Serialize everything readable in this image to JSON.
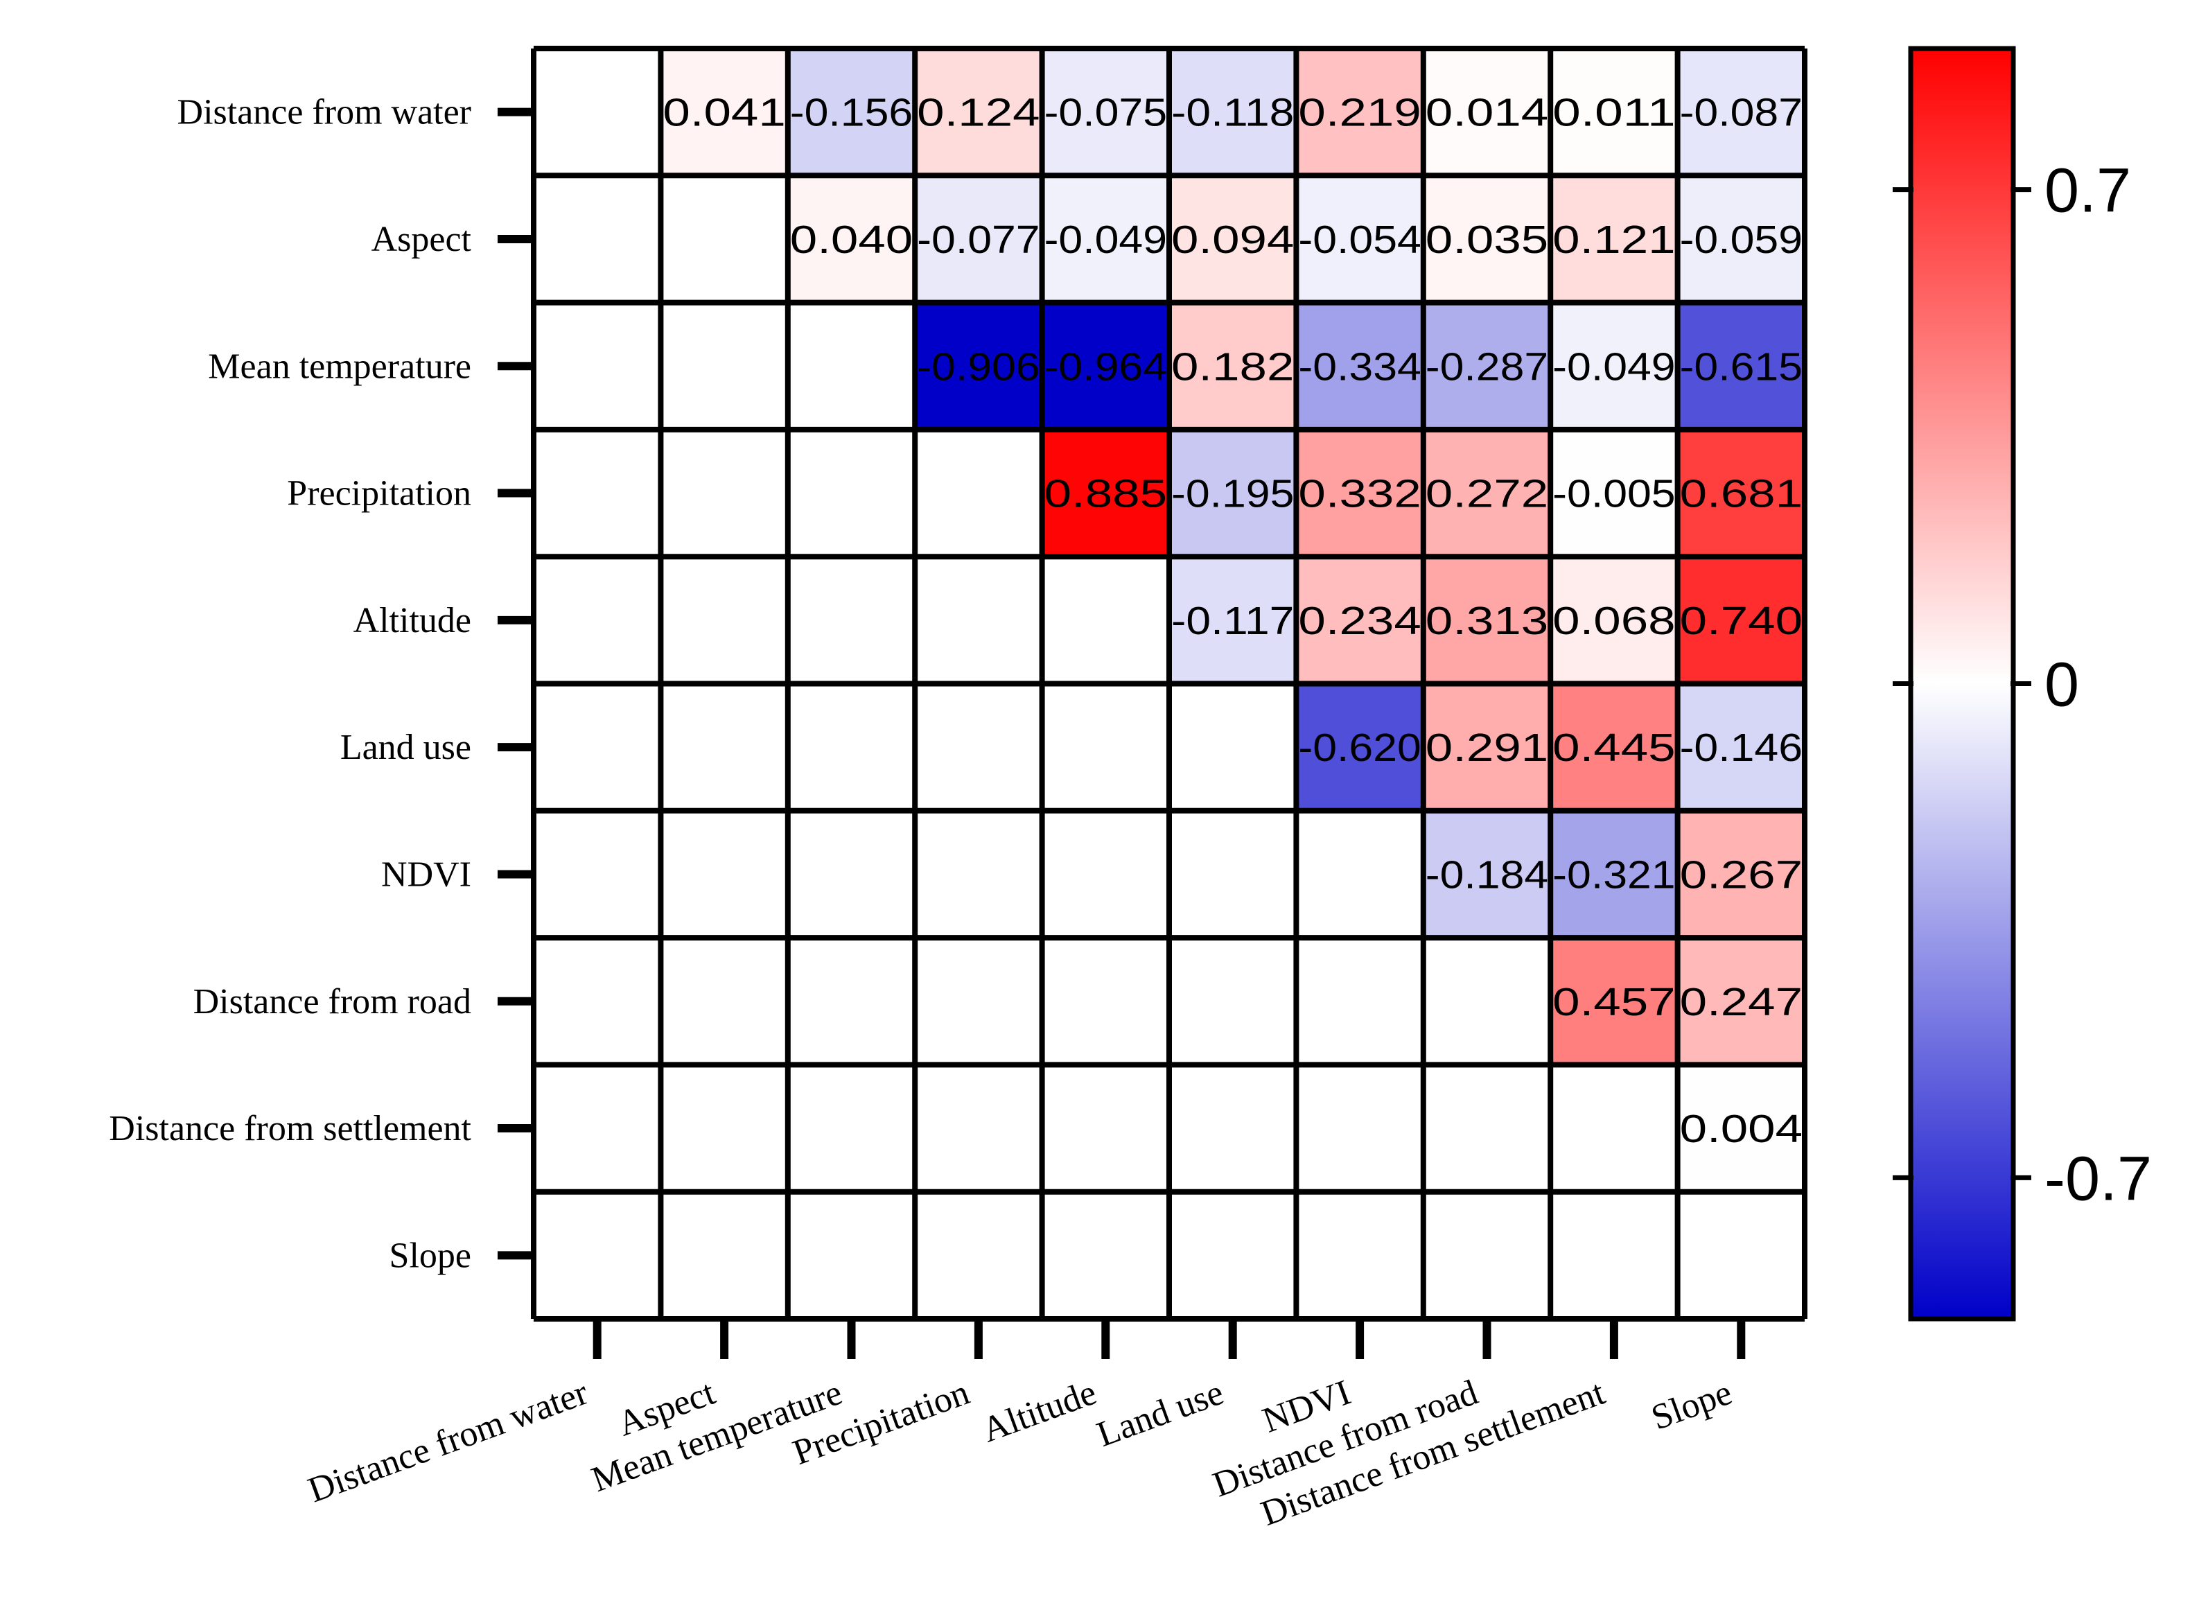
{
  "chart_data": {
    "type": "heatmap",
    "title": "",
    "variables": [
      "Distance from water",
      "Aspect",
      "Mean temperature",
      "Precipitation",
      "Altitude",
      "Land use",
      "NDVI",
      "Distance from road",
      "Distance from settlement",
      "Slope"
    ],
    "row_labels": [
      "Distance from water",
      "Aspect",
      "Mean temperature",
      "Precipitation",
      "Altitude",
      "Land use",
      "NDVI",
      "Distance from road",
      "Distance from settlement",
      "Slope"
    ],
    "col_labels": [
      "Distance from water",
      "Aspect",
      "Mean temperature",
      "Precipitation",
      "Altitude",
      "Land use",
      "NDVI",
      "Distance from road",
      "Distance from settlement",
      "Slope"
    ],
    "values": [
      [
        null,
        0.041,
        -0.156,
        0.124,
        -0.075,
        -0.118,
        0.219,
        0.014,
        0.011,
        -0.087
      ],
      [
        null,
        null,
        0.04,
        -0.077,
        -0.049,
        0.094,
        -0.054,
        0.035,
        0.121,
        -0.059
      ],
      [
        null,
        null,
        null,
        -0.906,
        -0.964,
        0.182,
        -0.334,
        -0.287,
        -0.049,
        -0.615
      ],
      [
        null,
        null,
        null,
        null,
        0.885,
        -0.195,
        0.332,
        0.272,
        -0.005,
        0.681
      ],
      [
        null,
        null,
        null,
        null,
        null,
        -0.117,
        0.234,
        0.313,
        0.068,
        0.74
      ],
      [
        null,
        null,
        null,
        null,
        null,
        null,
        -0.62,
        0.291,
        0.445,
        -0.146
      ],
      [
        null,
        null,
        null,
        null,
        null,
        null,
        null,
        -0.184,
        -0.321,
        0.267
      ],
      [
        null,
        null,
        null,
        null,
        null,
        null,
        null,
        null,
        0.457,
        0.247
      ],
      [
        null,
        null,
        null,
        null,
        null,
        null,
        null,
        null,
        null,
        0.004
      ],
      [
        null,
        null,
        null,
        null,
        null,
        null,
        null,
        null,
        null,
        null
      ]
    ],
    "value_labels": [
      [
        "",
        "0.041",
        "-0.156",
        "0.124",
        "-0.075",
        "-0.118",
        "0.219",
        "0.014",
        "0.011",
        "-0.087"
      ],
      [
        "",
        "",
        "0.040",
        "-0.077",
        "-0.049",
        "0.094",
        "-0.054",
        "0.035",
        "0.121",
        "-0.059"
      ],
      [
        "",
        "",
        "",
        "-0.906",
        "-0.964",
        "0.182",
        "-0.334",
        "-0.287",
        "-0.049",
        "-0.615"
      ],
      [
        "",
        "",
        "",
        "",
        "0.885",
        "-0.195",
        "0.332",
        "0.272",
        "-0.005",
        "0.681"
      ],
      [
        "",
        "",
        "",
        "",
        "",
        "-0.117",
        "0.234",
        "0.313",
        "0.068",
        "0.740"
      ],
      [
        "",
        "",
        "",
        "",
        "",
        "",
        "-0.620",
        "0.291",
        "0.445",
        "-0.146"
      ],
      [
        "",
        "",
        "",
        "",
        "",
        "",
        "",
        "-0.184",
        "-0.321",
        "0.267"
      ],
      [
        "",
        "",
        "",
        "",
        "",
        "",
        "",
        "",
        "0.457",
        "0.247"
      ],
      [
        "",
        "",
        "",
        "",
        "",
        "",
        "",
        "",
        "",
        "0.004"
      ],
      [
        "",
        "",
        "",
        "",
        "",
        "",
        "",
        "",
        "",
        ""
      ]
    ],
    "colorbar": {
      "range": [
        -0.9,
        0.9
      ],
      "ticks": [
        -0.7,
        0,
        0.7
      ],
      "tick_labels": [
        "-0.7",
        "0",
        "0.7"
      ],
      "colors": {
        "low": "#0000c8",
        "mid": "#ffffff",
        "high": "#ff0000"
      }
    },
    "grid": true,
    "legend": "right"
  }
}
